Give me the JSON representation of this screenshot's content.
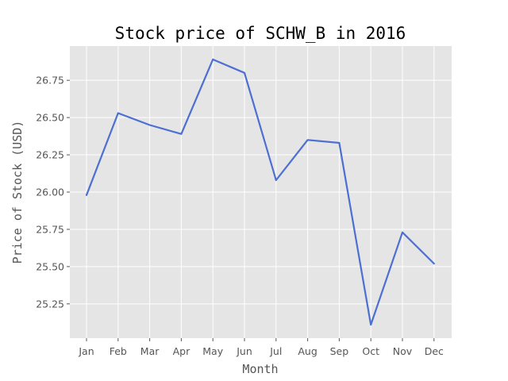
{
  "chart_data": {
    "type": "line",
    "title": "Stock price of SCHW_B in 2016",
    "xlabel": "Month",
    "ylabel": "Price of Stock (USD)",
    "categories": [
      "Jan",
      "Feb",
      "Mar",
      "Apr",
      "May",
      "Jun",
      "Jul",
      "Aug",
      "Sep",
      "Oct",
      "Nov",
      "Dec"
    ],
    "values": [
      25.98,
      26.53,
      26.45,
      26.39,
      26.89,
      26.8,
      26.08,
      26.35,
      26.33,
      25.11,
      25.73,
      25.52
    ],
    "yticks": [
      25.25,
      25.5,
      25.75,
      26.0,
      26.25,
      26.5,
      26.75
    ],
    "ytick_labels": [
      "25.25",
      "25.50",
      "25.75",
      "26.00",
      "26.25",
      "26.50",
      "26.75"
    ],
    "ylim": [
      25.02,
      26.98
    ],
    "grid": true,
    "colors": {
      "line": "#4c6fd1",
      "plot_background": "#e5e5e5",
      "grid": "#ffffff"
    }
  }
}
